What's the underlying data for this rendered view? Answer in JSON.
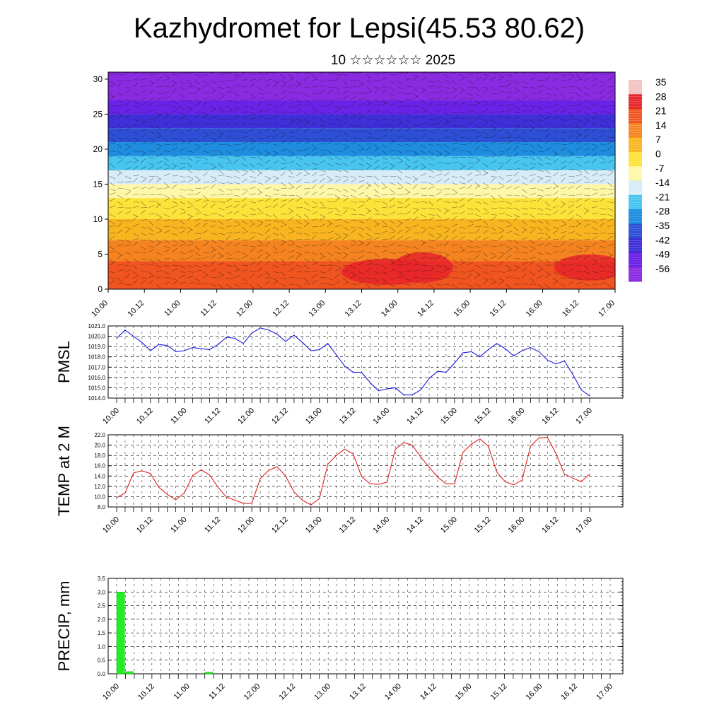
{
  "title": "Kazhydromet for Lepsi(45.53 80.62)",
  "subtitle": "10 ☆☆☆☆☆☆ 2025",
  "chart_data": [
    {
      "type": "heatmap",
      "name": "cross-section",
      "ylim": [
        0,
        31
      ],
      "yticks": [
        0,
        5,
        10,
        15,
        20,
        25,
        30
      ],
      "xticks": [
        "10.00",
        "10.12",
        "11.00",
        "11.12",
        "12.00",
        "12.12",
        "13.00",
        "13.12",
        "14.00",
        "14.12",
        "15.00",
        "15.12",
        "16.00",
        "16.12",
        "17.00"
      ],
      "colorbar": {
        "labels": [
          "35",
          "28",
          "21",
          "14",
          "7",
          "0",
          "-7",
          "-14",
          "-21",
          "-28",
          "-35",
          "-42",
          "-49",
          "-56"
        ],
        "colors": [
          "#f4c2c2",
          "#e8242a",
          "#f0541f",
          "#f58420",
          "#f9b520",
          "#fde23a",
          "#fff7a8",
          "#d8ecf8",
          "#47c5f0",
          "#1e8cdf",
          "#2c4fd6",
          "#3f2fd8",
          "#6a22e6",
          "#8a2be2"
        ]
      },
      "bands": [
        {
          "top": 31,
          "bottom": 27,
          "value": -56
        },
        {
          "top": 27,
          "bottom": 25,
          "value": -49
        },
        {
          "top": 25,
          "bottom": 23,
          "value": -42
        },
        {
          "top": 23,
          "bottom": 21,
          "value": -35
        },
        {
          "top": 21,
          "bottom": 19,
          "value": -28
        },
        {
          "top": 19,
          "bottom": 17,
          "value": -21
        },
        {
          "top": 17,
          "bottom": 15,
          "value": -14
        },
        {
          "top": 15,
          "bottom": 13,
          "value": -7
        },
        {
          "top": 13,
          "bottom": 10,
          "value": 0
        },
        {
          "top": 10,
          "bottom": 7,
          "value": 7
        },
        {
          "top": 7,
          "bottom": 4,
          "value": 14
        },
        {
          "top": 4,
          "bottom": 0,
          "value": 21
        }
      ]
    },
    {
      "type": "line",
      "name": "pmsl",
      "ylabel": "PMSL",
      "ylim": [
        1014.0,
        1021.0
      ],
      "yticks": [
        "1014.0",
        "1015.0",
        "1016.0",
        "1017.0",
        "1018.0",
        "1019.0",
        "1020.0",
        "1021.0"
      ],
      "xticks": [
        "10.00",
        "10.12",
        "11.00",
        "11.12",
        "12.00",
        "12.12",
        "13.00",
        "13.12",
        "14.00",
        "14.12",
        "15.00",
        "15.12",
        "16.00",
        "16.12",
        "17.00"
      ],
      "color": "#1a1adf",
      "values": [
        1019.8,
        1020.6,
        1020.0,
        1019.4,
        1018.6,
        1019.2,
        1019.1,
        1018.5,
        1018.6,
        1018.9,
        1018.8,
        1018.7,
        1019.2,
        1019.9,
        1019.8,
        1019.3,
        1020.3,
        1020.8,
        1020.6,
        1020.2,
        1019.5,
        1020.1,
        1019.4,
        1018.6,
        1018.7,
        1019.3,
        1018.2,
        1017.1,
        1016.5,
        1016.5,
        1015.5,
        1014.7,
        1014.9,
        1015.0,
        1014.3,
        1014.3,
        1014.8,
        1015.9,
        1016.6,
        1016.5,
        1017.4,
        1018.4,
        1018.5,
        1018.0,
        1018.7,
        1019.3,
        1018.8,
        1018.1,
        1018.6,
        1018.9,
        1018.5,
        1017.7,
        1017.3,
        1017.6,
        1016.3,
        1014.8,
        1014.2
      ]
    },
    {
      "type": "line",
      "name": "temp",
      "ylabel": "TEMP at 2 M",
      "ylim": [
        8.0,
        22.0
      ],
      "yticks": [
        "8.0",
        "10.0",
        "12.0",
        "14.0",
        "16.0",
        "18.0",
        "20.0",
        "22.0"
      ],
      "xticks": [
        "10.00",
        "10.12",
        "11.00",
        "11.12",
        "12.00",
        "12.12",
        "13.00",
        "13.12",
        "14.00",
        "14.12",
        "15.00",
        "15.12",
        "16.00",
        "16.12",
        "17.00"
      ],
      "color": "#e02020",
      "values": [
        9.8,
        10.7,
        14.6,
        15.0,
        14.5,
        11.8,
        10.4,
        9.4,
        10.7,
        14.1,
        15.2,
        14.2,
        11.8,
        9.9,
        9.3,
        8.7,
        8.7,
        13.5,
        15.1,
        15.8,
        14.0,
        10.9,
        9.3,
        8.4,
        9.6,
        16.3,
        18.0,
        19.2,
        18.3,
        13.9,
        12.5,
        12.4,
        12.8,
        19.2,
        20.5,
        20.0,
        17.7,
        15.7,
        13.8,
        12.5,
        12.5,
        18.6,
        20.2,
        21.2,
        19.8,
        14.8,
        12.9,
        12.3,
        13.2,
        19.8,
        21.4,
        21.5,
        18.4,
        14.4,
        13.6,
        12.9,
        14.4
      ]
    },
    {
      "type": "bar",
      "name": "precip",
      "ylabel": "PRECIP, mm",
      "ylim": [
        0.0,
        3.5
      ],
      "yticks": [
        "0.0",
        "0.5",
        "1.0",
        "1.5",
        "2.0",
        "2.5",
        "3.0",
        "3.5"
      ],
      "xticks": [
        "10.00",
        "10.12",
        "11.00",
        "11.12",
        "12.00",
        "12.12",
        "13.00",
        "13.12",
        "14.00",
        "14.12",
        "15.00",
        "15.12",
        "16.00",
        "16.12",
        "17.00"
      ],
      "color": "#22ee22",
      "values": [
        3.0,
        0.08,
        0,
        0,
        0,
        0,
        0,
        0,
        0,
        0,
        0.06,
        0,
        0,
        0,
        0,
        0,
        0,
        0,
        0,
        0,
        0,
        0,
        0,
        0,
        0,
        0,
        0,
        0,
        0,
        0,
        0,
        0,
        0,
        0,
        0,
        0,
        0,
        0,
        0,
        0,
        0,
        0,
        0,
        0,
        0,
        0,
        0,
        0,
        0,
        0,
        0,
        0,
        0,
        0,
        0,
        0,
        0
      ]
    }
  ]
}
